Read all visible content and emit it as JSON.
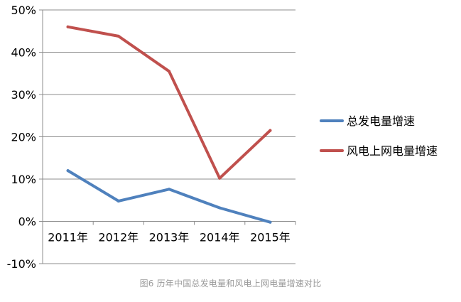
{
  "chart_data": {
    "type": "line",
    "title": "",
    "xlabel": "",
    "ylabel": "",
    "categories": [
      "2011年",
      "2012年",
      "2013年",
      "2014年",
      "2015年"
    ],
    "y_ticks": [
      "-10%",
      "0%",
      "10%",
      "20%",
      "30%",
      "40%",
      "50%"
    ],
    "ylim": [
      -10,
      50
    ],
    "grid": true,
    "legend_position": "right",
    "series": [
      {
        "name": "总发电量增速",
        "color": "#4f81bd",
        "values": [
          12.0,
          4.8,
          7.6,
          3.2,
          -0.2
        ]
      },
      {
        "name": "风电上网电量增速",
        "color": "#c0504d",
        "values": [
          46.0,
          43.8,
          35.5,
          10.2,
          21.5
        ]
      }
    ]
  },
  "caption": "图6 历年中国总发电量和风电上网电量增速对比"
}
